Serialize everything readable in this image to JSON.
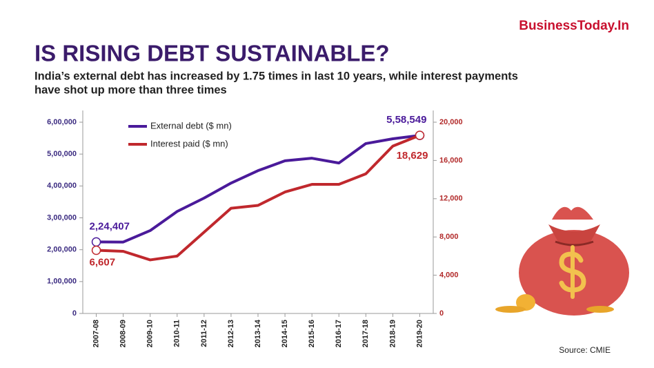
{
  "chart_data": {
    "type": "line",
    "brand": "BusinessToday.In",
    "title": "IS RISING DEBT SUSTAINABLE?",
    "subtitle": [
      "India’s external debt has increased by 1.75 times in last 10 years, while interest payments",
      "have shot up more than three times"
    ],
    "source": "Source: CMIE",
    "categories": [
      "2007-08",
      "2008-09",
      "2009-10",
      "2010-11",
      "2011-12",
      "2012-13",
      "2013-14",
      "2014-15",
      "2015-16",
      "2016-17",
      "2017-18",
      "2018-19",
      "2019-20"
    ],
    "series": [
      {
        "name": "External debt ($ mn)",
        "color": "#4a1a9a",
        "values": [
          224407,
          224000,
          260000,
          320000,
          362000,
          409000,
          448000,
          479000,
          487000,
          472000,
          533000,
          548000,
          558549
        ],
        "value_labels": [
          "2,24,407",
          null,
          null,
          null,
          null,
          null,
          null,
          null,
          null,
          null,
          null,
          null,
          "5,58,549"
        ]
      },
      {
        "name": "Interest paid ($ mn)",
        "color": "#c0282d",
        "axis": "y2",
        "values": [
          6607,
          6500,
          5600,
          6000,
          8500,
          11000,
          11300,
          12700,
          13500,
          13500,
          14600,
          17500,
          18629
        ],
        "value_labels": [
          "6,607",
          null,
          null,
          null,
          null,
          null,
          null,
          null,
          null,
          null,
          null,
          null,
          "18,629"
        ]
      }
    ],
    "ylim": [
      0,
      600000
    ],
    "yticks": [
      0,
      {
        "value": 100000,
        "label": "1,00,000"
      },
      {
        "value": 200000,
        "label": "2,00,000"
      },
      {
        "value": 300000,
        "label": "3,00,000"
      },
      {
        "value": 400000,
        "label": "4,00,000"
      },
      {
        "value": 500000,
        "label": "5,00,000"
      },
      {
        "value": 600000,
        "label": "6,00,000"
      }
    ],
    "y2lim": [
      0,
      20000
    ],
    "y2ticks": [
      0,
      {
        "value": 4000,
        "label": "4,000"
      },
      {
        "value": 8000,
        "label": "8,000"
      },
      {
        "value": 12000,
        "label": "12,000"
      },
      {
        "value": 16000,
        "label": "16,000"
      },
      {
        "value": 20000,
        "label": "20,000"
      }
    ],
    "legend": "upper left",
    "grid": false
  }
}
